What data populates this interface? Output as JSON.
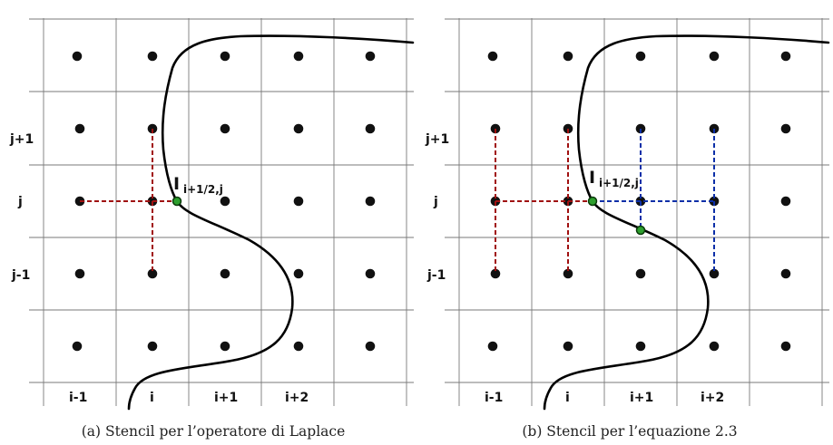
{
  "panels": [
    {
      "id": "a",
      "col_labels": [
        "i-1",
        "i",
        "i+1",
        "i+2"
      ],
      "row_labels": [
        "j+1",
        "j",
        "j-1"
      ],
      "point_label": "I",
      "point_subscript": "i+1/2,j",
      "caption": "(a) Stencil per l’operatore di Laplace"
    },
    {
      "id": "b",
      "col_labels": [
        "i-1",
        "i",
        "i+1",
        "i+2"
      ],
      "row_labels": [
        "j+1",
        "j",
        "j-1"
      ],
      "point_label": "I",
      "point_subscript": "i+1/2,j",
      "caption": "(b) Stencil per l’equazione 2.3"
    }
  ],
  "colors": {
    "grid": "#7a7a7a",
    "node": "#111111",
    "stencil_left": "#a01010",
    "stencil_right": "#0c2fa8",
    "interface_point": "#2e9f2e",
    "interface_curve": "#000000"
  }
}
